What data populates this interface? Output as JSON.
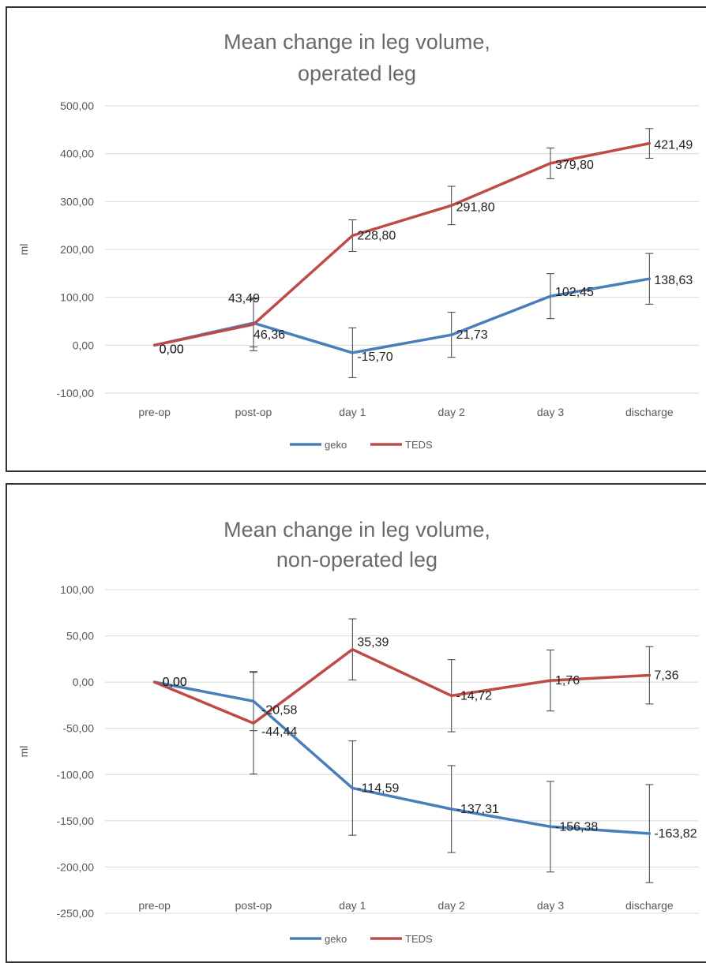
{
  "chart_data": [
    {
      "type": "line",
      "title_lines": [
        "Mean change in leg volume,",
        "operated leg"
      ],
      "ylabel": "ml",
      "xlabel": "",
      "categories": [
        "pre-op",
        "post-op",
        "day 1",
        "day 2",
        "day 3",
        "discharge"
      ],
      "ylim": [
        -100,
        500
      ],
      "yticks": [
        "-100,00",
        "0,00",
        "100,00",
        "200,00",
        "300,00",
        "400,00",
        "500,00"
      ],
      "ytick_values": [
        -100,
        0,
        100,
        200,
        300,
        400,
        500
      ],
      "grid": true,
      "legend": "bottom",
      "series": [
        {
          "name": "geko",
          "color": "#4a7ebb",
          "values": [
            0,
            46.36,
            -15.7,
            21.73,
            102.45,
            138.63
          ],
          "labels": [
            "0,00",
            "46,36",
            "-15,70",
            "21,73",
            "102,45",
            "138,63"
          ],
          "error": [
            null,
            50,
            52,
            47,
            47,
            53
          ]
        },
        {
          "name": "TEDS",
          "color": "#be4b48",
          "values": [
            0,
            43.49,
            228.8,
            291.8,
            379.8,
            421.49
          ],
          "labels": [
            "0,00",
            "43,49",
            "228,80",
            "291,80",
            "379,80",
            "421,49"
          ],
          "error": [
            null,
            55,
            33,
            40,
            32,
            31
          ]
        }
      ]
    },
    {
      "type": "line",
      "title_lines": [
        "Mean change in leg volume,",
        "non-operated leg"
      ],
      "ylabel": "ml",
      "xlabel": "",
      "categories": [
        "pre-op",
        "post-op",
        "day 1",
        "day 2",
        "day 3",
        "discharge"
      ],
      "ylim": [
        -250,
        100
      ],
      "yticks": [
        "-250,00",
        "-200,00",
        "-150,00",
        "-100,00",
        "-50,00",
        "0,00",
        "50,00",
        "100,00"
      ],
      "ytick_values": [
        -250,
        -200,
        -150,
        -100,
        -50,
        0,
        50,
        100
      ],
      "grid": true,
      "legend": "bottom",
      "series": [
        {
          "name": "geko",
          "color": "#4a7ebb",
          "values": [
            0,
            -20.58,
            -114.59,
            -137.31,
            -156.38,
            -163.82
          ],
          "labels": [
            "0,00",
            "-20,58",
            "-114,59",
            "-137,31",
            "-156,38",
            "-163,82"
          ],
          "error": [
            null,
            32,
            51,
            47,
            49,
            53
          ]
        },
        {
          "name": "TEDS",
          "color": "#be4b48",
          "values": [
            0,
            -44.44,
            35.39,
            -14.72,
            1.76,
            7.36
          ],
          "labels": [
            "0,00",
            "-44,44",
            "35,39",
            "-14,72",
            "1,76",
            "7,36"
          ],
          "error": [
            null,
            55,
            33,
            39,
            33,
            31
          ]
        }
      ]
    }
  ]
}
